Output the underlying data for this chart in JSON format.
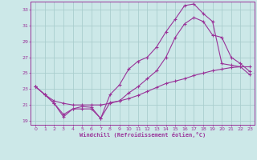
{
  "xlabel": "Windchill (Refroidissement éolien,°C)",
  "xlim": [
    -0.5,
    23.5
  ],
  "ylim": [
    18.5,
    34.0
  ],
  "xticks": [
    0,
    1,
    2,
    3,
    4,
    5,
    6,
    7,
    8,
    9,
    10,
    11,
    12,
    13,
    14,
    15,
    16,
    17,
    18,
    19,
    20,
    21,
    22,
    23
  ],
  "yticks": [
    19,
    21,
    23,
    25,
    27,
    29,
    31,
    33
  ],
  "bg_color": "#cce8e8",
  "line_color": "#993399",
  "grid_color": "#aacece",
  "line1_x": [
    0,
    1,
    2,
    3,
    4,
    5,
    6,
    7,
    8,
    9,
    10,
    11,
    12,
    13,
    14,
    15,
    16,
    17,
    18,
    19,
    20,
    21,
    22,
    23
  ],
  "line1_y": [
    23.3,
    22.3,
    21.2,
    19.5,
    20.5,
    20.8,
    20.7,
    19.3,
    22.3,
    23.5,
    25.5,
    26.5,
    27.0,
    28.3,
    30.2,
    31.8,
    33.5,
    33.7,
    32.5,
    31.5,
    26.2,
    26.0,
    25.8,
    24.8
  ],
  "line2_x": [
    0,
    1,
    2,
    3,
    4,
    5,
    6,
    7,
    8,
    9,
    10,
    11,
    12,
    13,
    14,
    15,
    16,
    17,
    18,
    19,
    20,
    21,
    22,
    23
  ],
  "line2_y": [
    23.3,
    22.3,
    21.2,
    19.8,
    20.5,
    20.5,
    20.5,
    19.3,
    21.3,
    21.5,
    22.5,
    23.3,
    24.3,
    25.3,
    27.0,
    29.5,
    31.2,
    32.0,
    31.5,
    29.8,
    29.5,
    27.0,
    26.2,
    25.2
  ],
  "line3_x": [
    0,
    1,
    2,
    3,
    4,
    5,
    6,
    7,
    8,
    9,
    10,
    11,
    12,
    13,
    14,
    15,
    16,
    17,
    18,
    19,
    20,
    21,
    22,
    23
  ],
  "line3_y": [
    23.3,
    22.3,
    21.5,
    21.2,
    21.0,
    21.0,
    21.0,
    21.0,
    21.2,
    21.5,
    21.8,
    22.2,
    22.7,
    23.2,
    23.7,
    24.0,
    24.3,
    24.7,
    25.0,
    25.3,
    25.5,
    25.7,
    25.8,
    25.8
  ]
}
